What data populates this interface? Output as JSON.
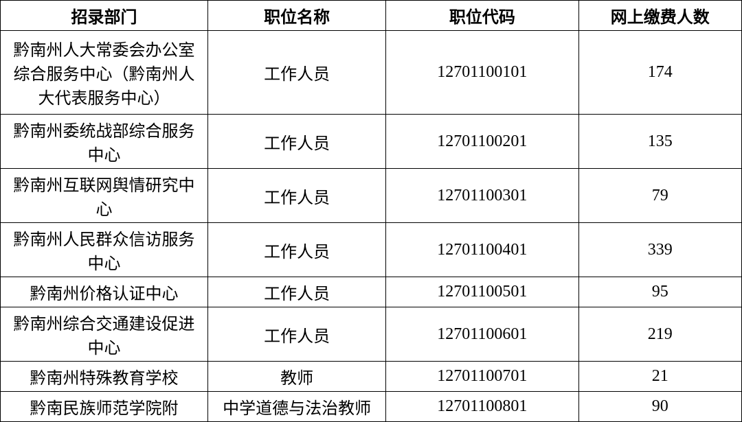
{
  "table": {
    "columns": [
      {
        "key": "dept",
        "label": "招录部门",
        "class": "col-dept"
      },
      {
        "key": "position",
        "label": "职位名称",
        "class": "col-position"
      },
      {
        "key": "code",
        "label": "职位代码",
        "class": "col-code"
      },
      {
        "key": "count",
        "label": "网上缴费人数",
        "class": "col-count"
      }
    ],
    "rows": [
      {
        "dept": "黔南州人大常委会办公室综合服务中心（黔南州人大代表服务中心）",
        "position": "工作人员",
        "code": "12701100101",
        "count": "174",
        "rowClass": "row-h1"
      },
      {
        "dept": "黔南州委统战部综合服务中心",
        "position": "工作人员",
        "code": "12701100201",
        "count": "135",
        "rowClass": "row-h2"
      },
      {
        "dept": "黔南州互联网舆情研究中心",
        "position": "工作人员",
        "code": "12701100301",
        "count": "79",
        "rowClass": "row-h3"
      },
      {
        "dept": "黔南州人民群众信访服务中心",
        "position": "工作人员",
        "code": "12701100401",
        "count": "339",
        "rowClass": "row-h4"
      },
      {
        "dept": "黔南州价格认证中心",
        "position": "工作人员",
        "code": "12701100501",
        "count": "95",
        "rowClass": "row-h5"
      },
      {
        "dept": "黔南州综合交通建设促进中心",
        "position": "工作人员",
        "code": "12701100601",
        "count": "219",
        "rowClass": "row-h6"
      },
      {
        "dept": "黔南州特殊教育学校",
        "position": "教师",
        "code": "12701100701",
        "count": "21",
        "rowClass": "row-h7"
      },
      {
        "dept": "黔南民族师范学院附",
        "position": "中学道德与法治教师",
        "code": "12701100801",
        "count": "90",
        "rowClass": "row-h8"
      }
    ],
    "style": {
      "border_color": "#000000",
      "text_color": "#000000",
      "background_color": "#ffffff",
      "header_fontsize": 24,
      "cell_fontsize": 24,
      "header_fontweight": "bold"
    }
  }
}
